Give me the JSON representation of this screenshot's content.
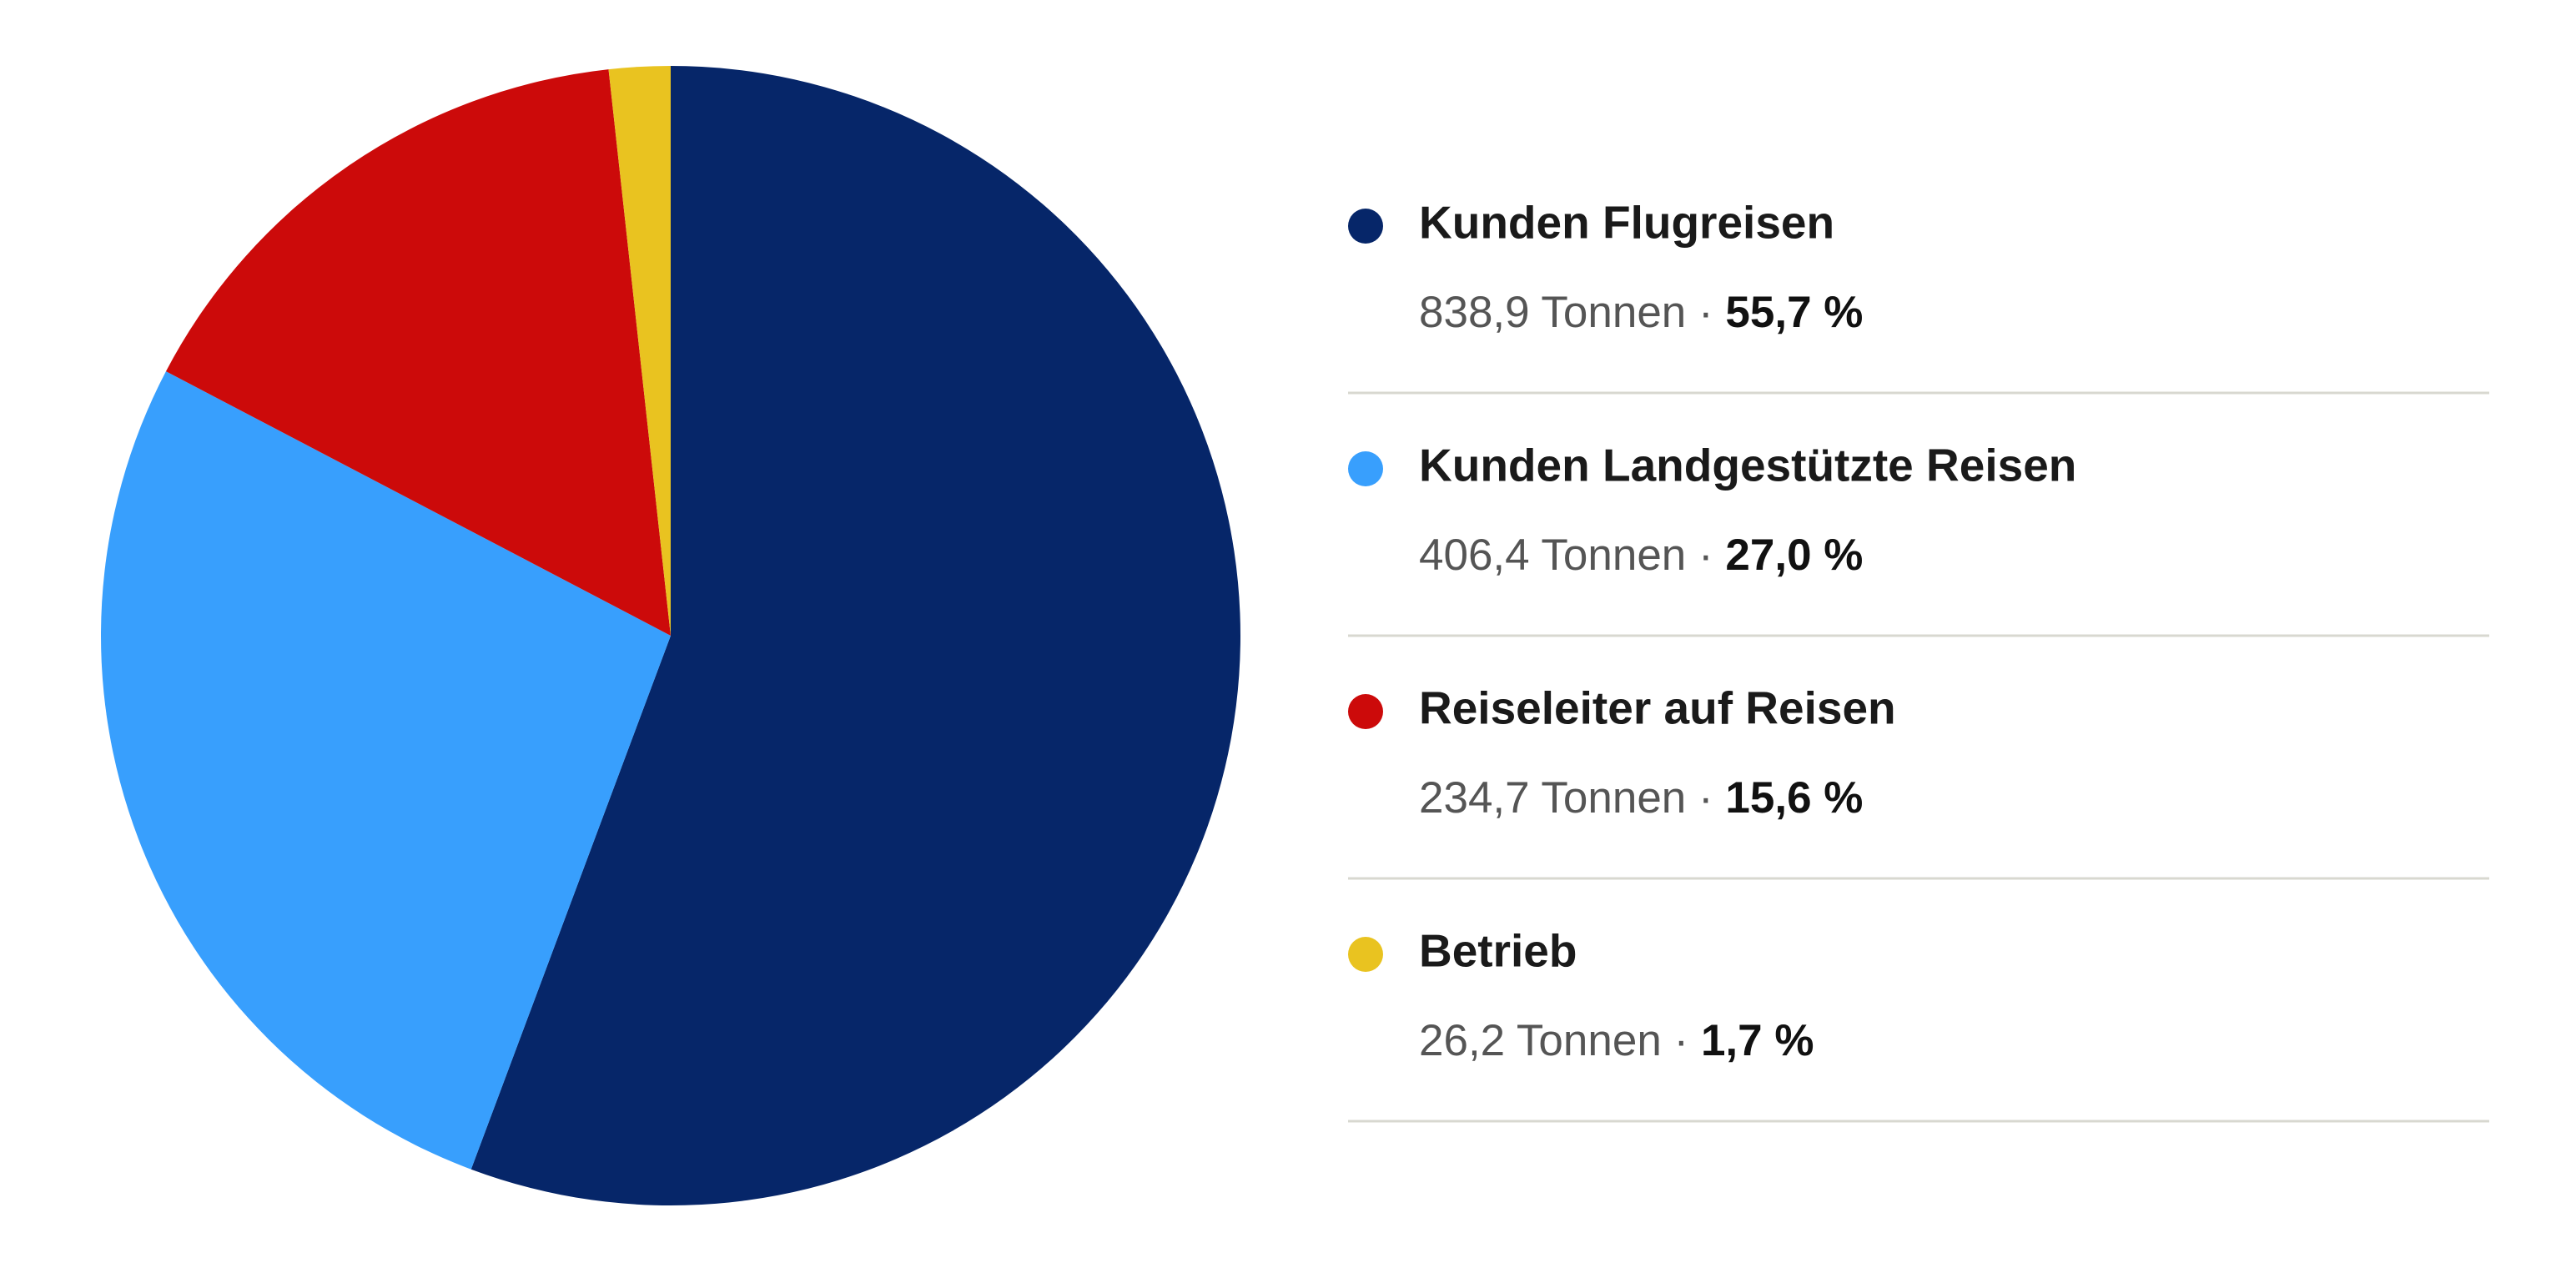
{
  "chart_data": {
    "type": "pie",
    "categories": [
      "Kunden Flugreisen",
      "Kunden Landgestützte Reisen",
      "Reiseleiter auf Reisen",
      "Betrieb"
    ],
    "values": [
      838.9,
      406.4,
      234.7,
      26.2
    ],
    "value_labels": [
      "838,9 Tonnen",
      "406,4 Tonnen",
      "234,7 Tonnen",
      "26,2 Tonnen"
    ],
    "percentages": [
      55.7,
      27.0,
      15.6,
      1.7
    ],
    "percent_labels": [
      "55,7 %",
      "27,0 %",
      "15,6 %",
      "1,7 %"
    ],
    "separator": "·",
    "colors": [
      "#062669",
      "#389ffd",
      "#cc0a0a",
      "#e9c320"
    ]
  }
}
